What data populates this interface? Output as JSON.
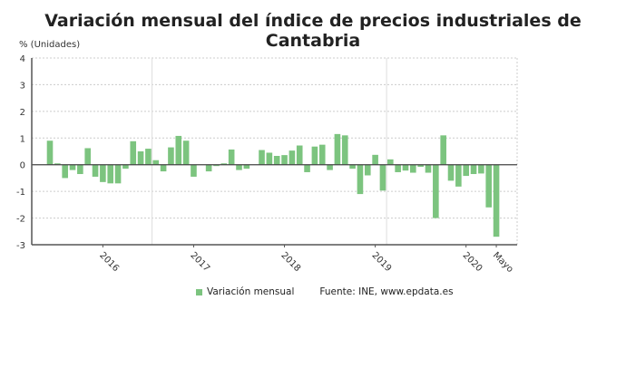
{
  "chart_data": {
    "type": "bar",
    "title": "Variación mensual del índice de precios industriales de Cantabria",
    "ylabel": "% (Unidades)",
    "ylim": [
      -3,
      4
    ],
    "yticks": [
      4,
      3,
      2,
      1,
      0,
      -1,
      -2,
      -3
    ],
    "grid": true,
    "legend_position": "bottom",
    "series": [
      {
        "name": "Variación mensual",
        "color": "#7cc47f",
        "values": [
          0.9,
          0.05,
          -0.5,
          -0.2,
          -0.35,
          0.62,
          -0.45,
          -0.65,
          -0.7,
          -0.7,
          -0.15,
          0.88,
          0.5,
          0.6,
          0.17,
          -0.25,
          0.65,
          1.08,
          0.9,
          -0.45,
          0,
          -0.25,
          -0.05,
          0.05,
          0.57,
          -0.2,
          -0.15,
          0,
          0.55,
          0.45,
          0.33,
          0.36,
          0.53,
          0.72,
          -0.28,
          0.68,
          0.75,
          -0.2,
          1.15,
          1.1,
          -0.15,
          -1.1,
          -0.4,
          0.37,
          -0.97,
          0.2,
          -0.28,
          -0.22,
          -0.3,
          -0.08,
          -0.3,
          -2.0,
          1.1,
          -0.6,
          -0.82,
          -0.42,
          -0.35,
          -0.33,
          -1.6,
          -2.7
        ]
      }
    ],
    "x_range": [
      "2015-06",
      "2020-05"
    ],
    "x_tick_labels": [
      {
        "label": "2016",
        "index": 7
      },
      {
        "label": "2017",
        "index": 19
      },
      {
        "label": "2018",
        "index": 31
      },
      {
        "label": "2019",
        "index": 43
      },
      {
        "label": "2020",
        "index": 55
      },
      {
        "label": "Mayo",
        "index": 59
      }
    ],
    "source": "Fuente: INE, www.epdata.es"
  }
}
